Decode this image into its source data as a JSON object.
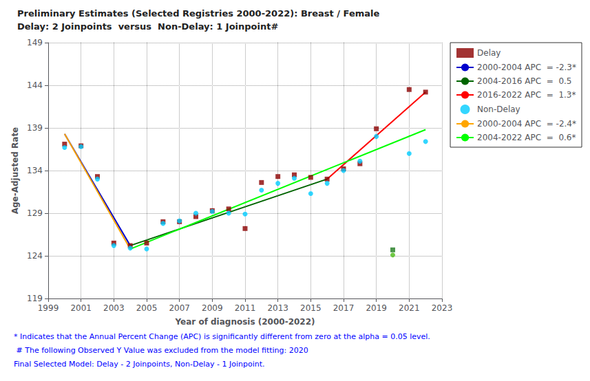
{
  "chart_data": {
    "type": "scatter",
    "title": "Preliminary Estimates (Selected Registries 2000-2022): Breast / Female",
    "subtitle": "Delay: 2 Joinpoints  versus  Non-Delay: 1 Joinpoint#",
    "xlabel": "Year of diagnosis (2000-2022)",
    "ylabel": "Age-Adjusted Rate",
    "xlim": [
      1999,
      2023
    ],
    "ylim": [
      119,
      149
    ],
    "xticks": [
      1999,
      2001,
      2003,
      2005,
      2007,
      2009,
      2011,
      2013,
      2015,
      2017,
      2019,
      2021,
      2023
    ],
    "yticks": [
      119,
      124,
      129,
      134,
      139,
      144,
      149
    ],
    "grid": true,
    "legend": "right",
    "series": [
      {
        "name": "Delay",
        "type": "scatter",
        "marker": "square",
        "color": "#8B0000",
        "x": [
          2000,
          2001,
          2002,
          2003,
          2004,
          2005,
          2006,
          2007,
          2008,
          2009,
          2010,
          2011,
          2012,
          2013,
          2014,
          2015,
          2016,
          2017,
          2018,
          2019,
          2021,
          2022
        ],
        "values": [
          137.1,
          136.9,
          133.3,
          125.5,
          125.2,
          125.5,
          128.0,
          128.0,
          128.6,
          129.3,
          129.5,
          127.2,
          132.6,
          133.3,
          133.5,
          133.2,
          133.0,
          134.2,
          134.8,
          138.9,
          143.5,
          143.2
        ]
      },
      {
        "name": "2000-2004 APC  = -2.3*",
        "type": "line",
        "color": "#0000CC",
        "x": [
          2000,
          2004
        ],
        "values": [
          138.3,
          125.2
        ]
      },
      {
        "name": "2004-2016 APC  =  0.5",
        "type": "line",
        "color": "#006400",
        "x": [
          2004,
          2016
        ],
        "values": [
          125.2,
          133.0
        ]
      },
      {
        "name": "2016-2022 APC  =  1.3*",
        "type": "line",
        "color": "#FF0000",
        "x": [
          2016,
          2022
        ],
        "values": [
          133.0,
          143.2
        ]
      },
      {
        "name": "Non-Delay",
        "type": "scatter",
        "marker": "circle",
        "color": "#00CCFF",
        "x": [
          2000,
          2001,
          2002,
          2003,
          2004,
          2005,
          2006,
          2007,
          2008,
          2009,
          2010,
          2011,
          2012,
          2013,
          2014,
          2015,
          2016,
          2017,
          2018,
          2019,
          2021,
          2022
        ],
        "values": [
          136.7,
          136.8,
          133.0,
          125.2,
          124.9,
          124.8,
          127.8,
          128.1,
          129.0,
          129.2,
          129.0,
          128.9,
          131.7,
          132.5,
          133.1,
          131.3,
          132.5,
          134.0,
          135.1,
          138.0,
          136.0,
          137.4
        ]
      },
      {
        "name": "2000-2004 APC  = -2.4*",
        "type": "line",
        "color": "#FFA500",
        "x": [
          2000,
          2004
        ],
        "values": [
          138.3,
          124.8
        ]
      },
      {
        "name": "2004-2022 APC  =  0.6*",
        "type": "line",
        "color": "#00FF00",
        "x": [
          2004,
          2022
        ],
        "values": [
          124.8,
          138.8
        ]
      },
      {
        "type": "scatter",
        "marker": "square",
        "color": "#1E7B1E",
        "x": [
          2020
        ],
        "values": [
          124.7
        ]
      },
      {
        "type": "scatter",
        "marker": "circle",
        "color": "#4CBB17",
        "x": [
          2020
        ],
        "values": [
          124.1
        ]
      }
    ],
    "annotations": [
      {
        "text": "* Indicates that the Annual Percent Change (APC) is significantly different from zero at the alpha = 0.05 level.",
        "color": "blue"
      },
      {
        "text": " # The following Observed Y Value was excluded from the model fitting: 2020",
        "color": "blue"
      },
      {
        "text": "Final Selected Model: Delay - 2 Joinpoints, Non-Delay - 1 Joinpoint.",
        "color": "blue"
      }
    ]
  }
}
